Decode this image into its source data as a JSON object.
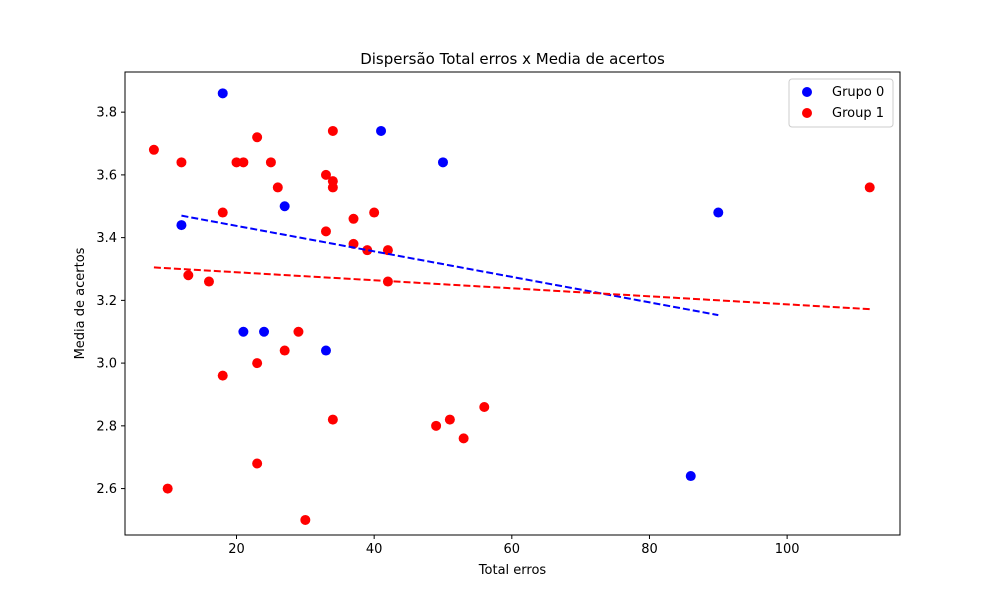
{
  "chart_data": {
    "type": "scatter",
    "title": "Dispersão Total erros x Media de acertos",
    "xlabel": "Total erros",
    "ylabel": "Media de acertos",
    "xlim": [
      3.8,
      116.4
    ],
    "ylim": [
      2.452,
      3.928
    ],
    "xticks": [
      20,
      40,
      60,
      80,
      100
    ],
    "yticks": [
      2.6,
      2.8,
      3.0,
      3.2,
      3.4,
      3.6,
      3.8
    ],
    "yticks_labels": [
      "2.6",
      "2.8",
      "3.0",
      "3.2",
      "3.4",
      "3.6",
      "3.8"
    ],
    "legend_position": "top-right",
    "series": [
      {
        "name": "Grupo 0",
        "color": "#0000ff",
        "points": [
          [
            12,
            3.44
          ],
          [
            18,
            3.86
          ],
          [
            21,
            3.1
          ],
          [
            24,
            3.1
          ],
          [
            27,
            3.5
          ],
          [
            33,
            3.04
          ],
          [
            41,
            3.74
          ],
          [
            50,
            3.64
          ],
          [
            86,
            2.64
          ],
          [
            90,
            3.48
          ]
        ],
        "trend": {
          "x": [
            12,
            90
          ],
          "y": [
            3.47,
            3.153
          ]
        }
      },
      {
        "name": "Group 1",
        "color": "#ff0000",
        "points": [
          [
            8,
            3.68
          ],
          [
            10,
            2.6
          ],
          [
            12,
            3.64
          ],
          [
            13,
            3.28
          ],
          [
            16,
            3.26
          ],
          [
            18,
            3.48
          ],
          [
            18,
            2.96
          ],
          [
            20,
            3.64
          ],
          [
            21,
            3.64
          ],
          [
            23,
            3.72
          ],
          [
            23,
            3.0
          ],
          [
            23,
            2.68
          ],
          [
            25,
            3.64
          ],
          [
            26,
            3.56
          ],
          [
            27,
            3.04
          ],
          [
            29,
            3.1
          ],
          [
            30,
            2.5
          ],
          [
            33,
            3.6
          ],
          [
            33,
            3.42
          ],
          [
            34,
            3.74
          ],
          [
            34,
            3.58
          ],
          [
            34,
            3.56
          ],
          [
            34,
            2.82
          ],
          [
            37,
            3.46
          ],
          [
            37,
            3.38
          ],
          [
            39,
            3.36
          ],
          [
            40,
            3.48
          ],
          [
            42,
            3.36
          ],
          [
            42,
            3.26
          ],
          [
            49,
            2.8
          ],
          [
            51,
            2.82
          ],
          [
            53,
            2.76
          ],
          [
            56,
            2.86
          ],
          [
            112,
            3.56
          ]
        ],
        "trend": {
          "x": [
            8,
            112
          ],
          "y": [
            3.305,
            3.172
          ]
        }
      }
    ]
  }
}
